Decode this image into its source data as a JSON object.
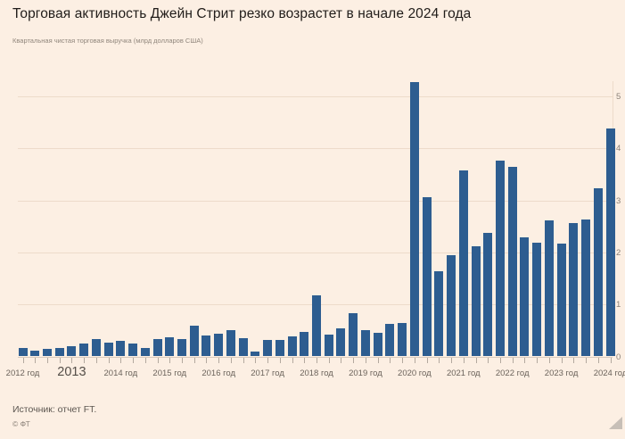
{
  "header": {
    "title": "Торговая активность Джейн Стрит резко возрастет в начале 2024 года",
    "subtitle": "Квартальная чистая торговая выручка (млрд долларов США)"
  },
  "footer": {
    "source": "Источник: отчет FT.",
    "copyright": "© ФТ"
  },
  "colors": {
    "background": "#fcefe3",
    "bar": "#2d5d90",
    "gridline": "#eddbca",
    "tick": "#b3a99f",
    "title_text": "#211d1a",
    "subtitle_text": "#90867c",
    "year_label_text": "#6b635b",
    "y_label_text": "#8b8279",
    "source_text": "#5c5650"
  },
  "chart_data": {
    "type": "bar",
    "title": "Торговая активность Джейн Стрит резко возрастет в начале 2024 года",
    "subtitle": "Квартальная чистая торговая выручка (млрд долларов США)",
    "xlabel": "",
    "ylabel": "млрд долларов США",
    "y_axis_side": "right",
    "grid": "horizontal",
    "legend": "none",
    "ylim": [
      0,
      5.5
    ],
    "yticks": [
      0,
      1,
      2,
      3,
      4,
      5
    ],
    "categories": [
      "2012 Q1",
      "2012 Q2",
      "2012 Q3",
      "2012 Q4",
      "2013 Q1",
      "2013 Q2",
      "2013 Q3",
      "2013 Q4",
      "2014 Q1",
      "2014 Q2",
      "2014 Q3",
      "2014 Q4",
      "2015 Q1",
      "2015 Q2",
      "2015 Q3",
      "2015 Q4",
      "2016 Q1",
      "2016 Q2",
      "2016 Q3",
      "2016 Q4",
      "2017 Q1",
      "2017 Q2",
      "2017 Q3",
      "2017 Q4",
      "2018 Q1",
      "2018 Q2",
      "2018 Q3",
      "2018 Q4",
      "2019 Q1",
      "2019 Q2",
      "2019 Q3",
      "2019 Q4",
      "2020 Q1",
      "2020 Q2",
      "2020 Q3",
      "2020 Q4",
      "2021 Q1",
      "2021 Q2",
      "2021 Q3",
      "2021 Q4",
      "2022 Q1",
      "2022 Q2",
      "2022 Q3",
      "2022 Q4",
      "2023 Q1",
      "2023 Q2",
      "2023 Q3",
      "2023 Q4",
      "2024 Q1"
    ],
    "values": [
      0.17,
      0.11,
      0.14,
      0.16,
      0.19,
      0.25,
      0.33,
      0.27,
      0.3,
      0.25,
      0.17,
      0.34,
      0.37,
      0.33,
      0.6,
      0.4,
      0.44,
      0.51,
      0.36,
      0.1,
      0.32,
      0.32,
      0.39,
      0.48,
      1.17,
      0.42,
      0.54,
      0.83,
      0.5,
      0.46,
      0.62,
      0.64,
      5.27,
      3.07,
      1.63,
      1.94,
      3.58,
      2.12,
      2.38,
      3.77,
      3.64,
      2.29,
      2.18,
      2.62,
      2.17,
      2.56,
      2.64,
      3.24,
      4.38
    ],
    "x_year_labels": [
      {
        "label": "2012 год",
        "emphasis": false
      },
      {
        "label": "2013",
        "emphasis": true
      },
      {
        "label": "2014 год",
        "emphasis": false
      },
      {
        "label": "2015 год",
        "emphasis": false
      },
      {
        "label": "2016 год",
        "emphasis": false
      },
      {
        "label": "2017 год",
        "emphasis": false
      },
      {
        "label": "2018 год",
        "emphasis": false
      },
      {
        "label": "2019 год",
        "emphasis": false
      },
      {
        "label": "2020 год",
        "emphasis": false
      },
      {
        "label": "2021 год",
        "emphasis": false
      },
      {
        "label": "2022 год",
        "emphasis": false
      },
      {
        "label": "2023 год",
        "emphasis": false
      },
      {
        "label": "2024 год",
        "emphasis": false
      }
    ]
  }
}
